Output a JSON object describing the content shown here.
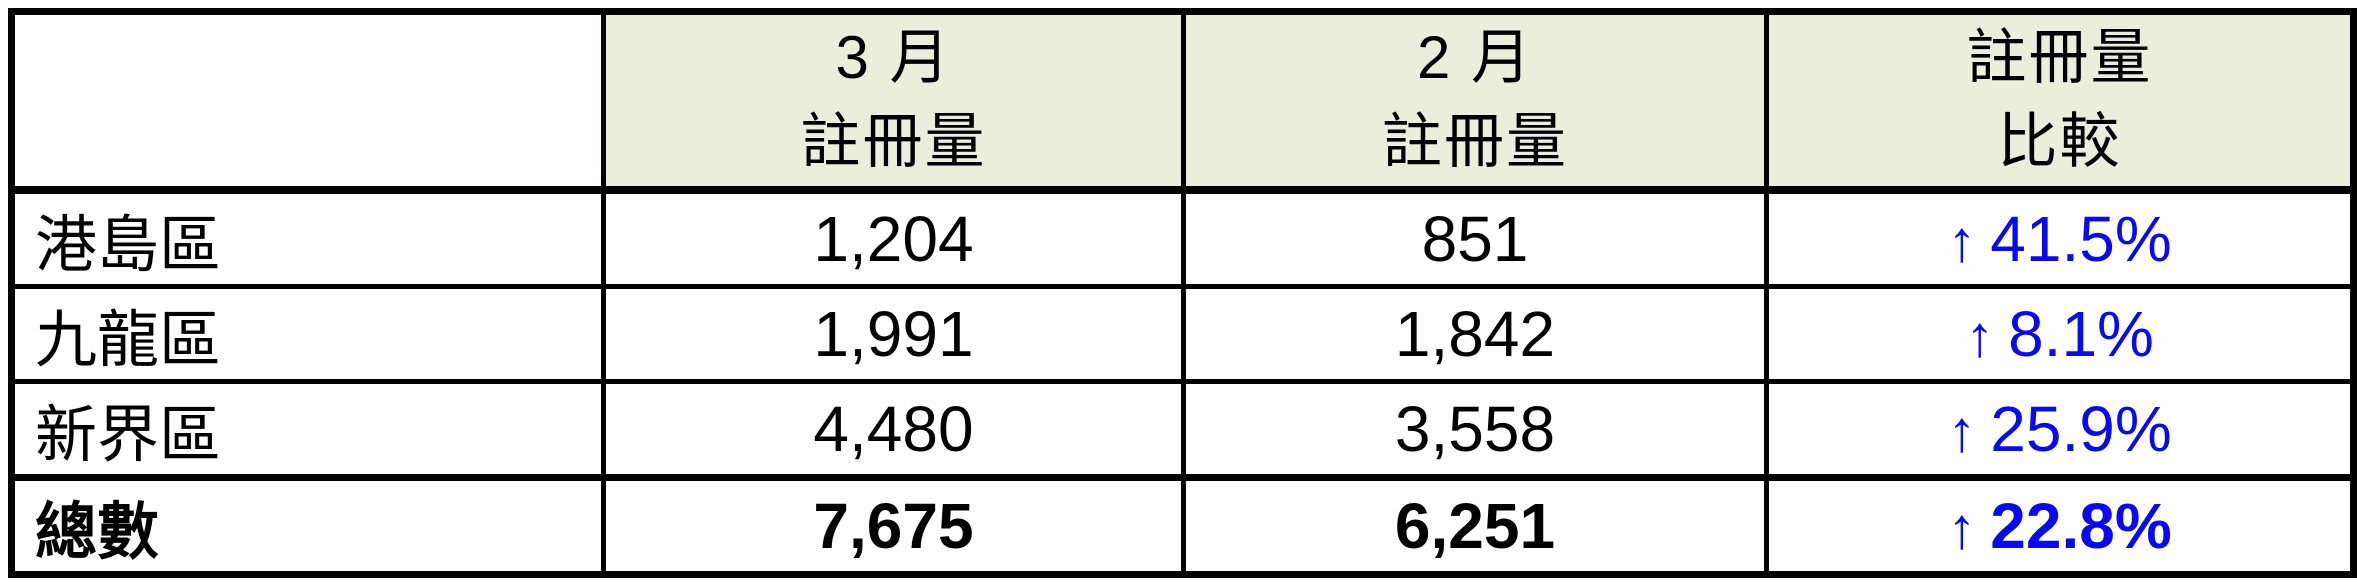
{
  "colors": {
    "header_bg": "#eaeedb",
    "increase_blue": "#0a0af0",
    "grid_border": "#000000",
    "page_bg": "#ffffff"
  },
  "table": {
    "header": {
      "region_blank": "",
      "march": {
        "line1": "3 月",
        "line2": "註冊量"
      },
      "february": {
        "line1": "2 月",
        "line2": "註冊量"
      },
      "comparison": {
        "line1": "註冊量",
        "line2": "比較"
      }
    },
    "rows": [
      {
        "region": "港島區",
        "march_registrations": "1,204",
        "february_registrations": "851",
        "change_arrow": "↑",
        "change_pct": "41.5%",
        "change_direction": "up",
        "is_total": false
      },
      {
        "region": "九龍區",
        "march_registrations": "1,991",
        "february_registrations": "1,842",
        "change_arrow": "↑",
        "change_pct": "8.1%",
        "change_direction": "up",
        "is_total": false
      },
      {
        "region": "新界區",
        "march_registrations": "4,480",
        "february_registrations": "3,558",
        "change_arrow": "↑",
        "change_pct": "25.9%",
        "change_direction": "up",
        "is_total": false
      },
      {
        "region": "總數",
        "march_registrations": "7,675",
        "february_registrations": "6,251",
        "change_arrow": "↑",
        "change_pct": "22.8%",
        "change_direction": "up",
        "is_total": true
      }
    ]
  }
}
